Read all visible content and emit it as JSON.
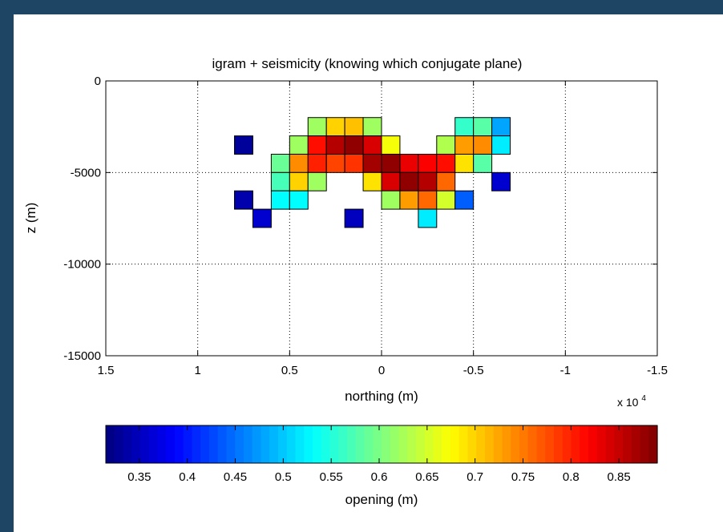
{
  "chart_data": {
    "type": "heatmap",
    "title": "igram + seismicity (knowing which conjugate plane)",
    "xlabel": "northing (m)",
    "ylabel": "z (m)",
    "x_exponent_label": "x 10",
    "x_exponent_power": "4",
    "xlim": [
      15000,
      -15000
    ],
    "ylim": [
      -15000,
      0
    ],
    "grid": true,
    "x_ticks": [
      15000,
      10000,
      5000,
      0,
      -5000,
      -10000,
      -15000
    ],
    "x_tick_labels": [
      "1.5",
      "1",
      "0.5",
      "0",
      "-0.5",
      "-1",
      "-1.5"
    ],
    "y_ticks": [
      0,
      -5000,
      -10000,
      -15000
    ],
    "y_tick_labels": [
      "0",
      "-5000",
      "-10000",
      "-15000"
    ],
    "cell_width": 1000,
    "cell_height": 1000,
    "cells": [
      {
        "x": 7500,
        "z": -3500,
        "v": 0.33
      },
      {
        "x": 7500,
        "z": -6500,
        "v": 0.34
      },
      {
        "x": 6500,
        "z": -7500,
        "v": 0.36
      },
      {
        "x": 1500,
        "z": -7500,
        "v": 0.35
      },
      {
        "x": -6500,
        "z": -5500,
        "v": 0.36
      },
      {
        "x": 5500,
        "z": -4500,
        "v": 0.59
      },
      {
        "x": 5500,
        "z": -5500,
        "v": 0.57
      },
      {
        "x": 5500,
        "z": -6500,
        "v": 0.53
      },
      {
        "x": 4500,
        "z": -3500,
        "v": 0.62
      },
      {
        "x": 4500,
        "z": -4500,
        "v": 0.74
      },
      {
        "x": 4500,
        "z": -5500,
        "v": 0.7
      },
      {
        "x": 4500,
        "z": -6500,
        "v": 0.53
      },
      {
        "x": 3500,
        "z": -2500,
        "v": 0.62
      },
      {
        "x": 3500,
        "z": -3500,
        "v": 0.81
      },
      {
        "x": 3500,
        "z": -4500,
        "v": 0.8
      },
      {
        "x": 3500,
        "z": -5500,
        "v": 0.62
      },
      {
        "x": 2500,
        "z": -2500,
        "v": 0.7
      },
      {
        "x": 2500,
        "z": -3500,
        "v": 0.86
      },
      {
        "x": 2500,
        "z": -4500,
        "v": 0.78
      },
      {
        "x": 1500,
        "z": -2500,
        "v": 0.71
      },
      {
        "x": 1500,
        "z": -3500,
        "v": 0.88
      },
      {
        "x": 1500,
        "z": -4500,
        "v": 0.79
      },
      {
        "x": 500,
        "z": -2500,
        "v": 0.62
      },
      {
        "x": 500,
        "z": -3500,
        "v": 0.84
      },
      {
        "x": 500,
        "z": -4500,
        "v": 0.87
      },
      {
        "x": 500,
        "z": -5500,
        "v": 0.69
      },
      {
        "x": -500,
        "z": -3500,
        "v": 0.67
      },
      {
        "x": -500,
        "z": -4500,
        "v": 0.88
      },
      {
        "x": -500,
        "z": -5500,
        "v": 0.84
      },
      {
        "x": -500,
        "z": -6500,
        "v": 0.62
      },
      {
        "x": -1500,
        "z": -4500,
        "v": 0.83
      },
      {
        "x": -1500,
        "z": -5500,
        "v": 0.88
      },
      {
        "x": -1500,
        "z": -6500,
        "v": 0.73
      },
      {
        "x": -2500,
        "z": -4500,
        "v": 0.82
      },
      {
        "x": -2500,
        "z": -5500,
        "v": 0.86
      },
      {
        "x": -2500,
        "z": -6500,
        "v": 0.76
      },
      {
        "x": -2500,
        "z": -7500,
        "v": 0.52
      },
      {
        "x": -3500,
        "z": -3500,
        "v": 0.63
      },
      {
        "x": -3500,
        "z": -4500,
        "v": 0.81
      },
      {
        "x": -3500,
        "z": -5500,
        "v": 0.76
      },
      {
        "x": -3500,
        "z": -6500,
        "v": 0.65
      },
      {
        "x": -4500,
        "z": -2500,
        "v": 0.56
      },
      {
        "x": -4500,
        "z": -3500,
        "v": 0.73
      },
      {
        "x": -4500,
        "z": -4500,
        "v": 0.69
      },
      {
        "x": -4500,
        "z": -6500,
        "v": 0.44
      },
      {
        "x": -5500,
        "z": -2500,
        "v": 0.58
      },
      {
        "x": -5500,
        "z": -3500,
        "v": 0.74
      },
      {
        "x": -5500,
        "z": -4500,
        "v": 0.58
      },
      {
        "x": -6500,
        "z": -2500,
        "v": 0.48
      },
      {
        "x": -6500,
        "z": -3500,
        "v": 0.52
      }
    ],
    "colorbar": {
      "label": "opening (m)",
      "range": [
        0.315,
        0.89
      ],
      "ticks": [
        0.35,
        0.4,
        0.45,
        0.5,
        0.55,
        0.6,
        0.65,
        0.7,
        0.75,
        0.8,
        0.85
      ],
      "tick_labels": [
        "0.35",
        "0.4",
        "0.45",
        "0.5",
        "0.55",
        "0.6",
        "0.65",
        "0.7",
        "0.75",
        "0.8",
        "0.85"
      ],
      "colormap": "jet"
    }
  }
}
